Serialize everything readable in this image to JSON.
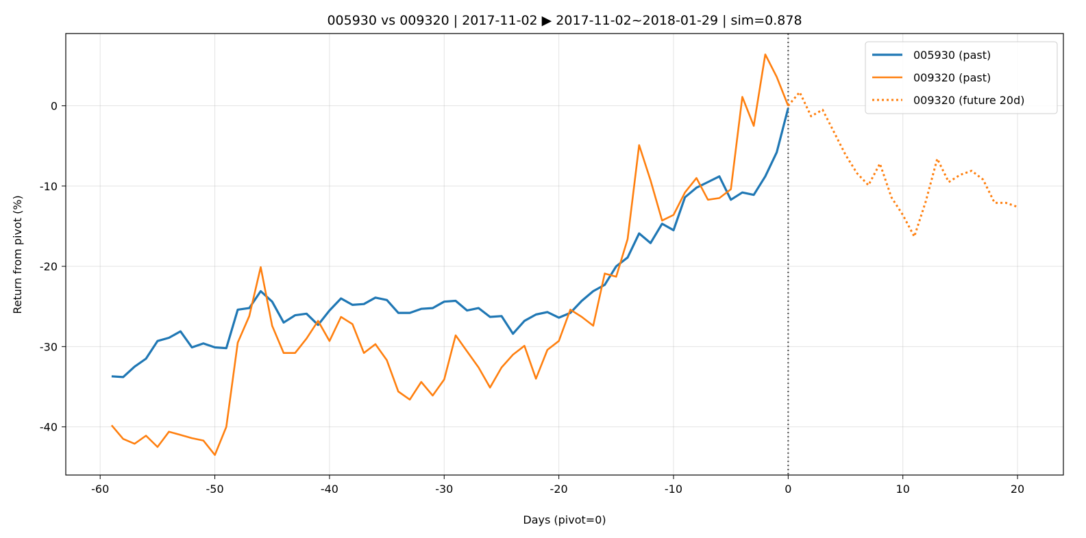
{
  "chart_data": {
    "type": "line",
    "title": "005930 vs 009320 | 2017-11-02 ▶ 2017-11-02~2018-01-29 | sim=0.878",
    "xlabel": "Days (pivot=0)",
    "ylabel": "Return from pivot (%)",
    "xlim": [
      -63,
      24
    ],
    "ylim": [
      -46,
      9
    ],
    "xticks": [
      -60,
      -50,
      -40,
      -30,
      -20,
      -10,
      0,
      10,
      20
    ],
    "yticks": [
      -40,
      -30,
      -20,
      -10,
      0
    ],
    "grid": true,
    "pivot_line_x": 0,
    "legend_position": "top-right",
    "series": [
      {
        "name": "005930 (past)",
        "color": "#1f77b4",
        "style": "solid",
        "x": [
          -59,
          -58,
          -57,
          -56,
          -55,
          -54,
          -53,
          -52,
          -51,
          -50,
          -49,
          -48,
          -47,
          -46,
          -45,
          -44,
          -43,
          -42,
          -41,
          -40,
          -39,
          -38,
          -37,
          -36,
          -35,
          -34,
          -33,
          -32,
          -31,
          -30,
          -29,
          -28,
          -27,
          -26,
          -25,
          -24,
          -23,
          -22,
          -21,
          -20,
          -19,
          -18,
          -17,
          -16,
          -15,
          -14,
          -13,
          -12,
          -11,
          -10,
          -9,
          -8,
          -7,
          -6,
          -5,
          -4,
          -3,
          -2,
          -1,
          0
        ],
        "y": [
          -33.7,
          -33.8,
          -32.5,
          -31.5,
          -29.3,
          -28.9,
          -28.1,
          -30.1,
          -29.6,
          -30.1,
          -30.2,
          -25.4,
          -25.2,
          -23.1,
          -24.4,
          -27.0,
          -26.1,
          -25.9,
          -27.3,
          -25.5,
          -24.0,
          -24.8,
          -24.7,
          -23.9,
          -24.2,
          -25.8,
          -25.8,
          -25.3,
          -25.2,
          -24.4,
          -24.3,
          -25.5,
          -25.2,
          -26.3,
          -26.2,
          -28.4,
          -26.8,
          -26.0,
          -25.7,
          -26.4,
          -25.8,
          -24.3,
          -23.1,
          -22.3,
          -20.0,
          -18.9,
          -15.9,
          -17.1,
          -14.7,
          -15.5,
          -11.4,
          -10.2,
          -9.5,
          -8.8,
          -11.7,
          -10.8,
          -11.1,
          -8.8,
          -5.8,
          -0.3
        ]
      },
      {
        "name": "009320 (past)",
        "color": "#ff7f0e",
        "style": "solid",
        "x": [
          -59,
          -58,
          -57,
          -56,
          -55,
          -54,
          -53,
          -52,
          -51,
          -50,
          -49,
          -48,
          -47,
          -46,
          -45,
          -44,
          -43,
          -42,
          -41,
          -40,
          -39,
          -38,
          -37,
          -36,
          -35,
          -34,
          -33,
          -32,
          -31,
          -30,
          -29,
          -28,
          -27,
          -26,
          -25,
          -24,
          -23,
          -22,
          -21,
          -20,
          -19,
          -18,
          -17,
          -16,
          -15,
          -14,
          -13,
          -12,
          -11,
          -10,
          -9,
          -8,
          -7,
          -6,
          -5,
          -4,
          -3,
          -2,
          -1,
          0
        ],
        "y": [
          -39.8,
          -41.5,
          -42.1,
          -41.1,
          -42.5,
          -40.6,
          -41.0,
          -41.4,
          -41.7,
          -43.5,
          -40.0,
          -29.5,
          -26.2,
          -20.1,
          -27.4,
          -30.8,
          -30.8,
          -29.0,
          -26.8,
          -29.3,
          -26.3,
          -27.2,
          -30.8,
          -29.7,
          -31.7,
          -35.6,
          -36.6,
          -34.4,
          -36.1,
          -34.1,
          -28.6,
          -30.6,
          -32.6,
          -35.1,
          -32.6,
          -31.0,
          -29.9,
          -34.0,
          -30.4,
          -29.3,
          -25.4,
          -26.3,
          -27.4,
          -20.9,
          -21.3,
          -16.6,
          -4.9,
          -9.3,
          -14.3,
          -13.6,
          -10.8,
          -9.0,
          -11.7,
          -11.5,
          -10.4,
          1.1,
          -2.5,
          6.4,
          3.6,
          0.0
        ]
      },
      {
        "name": "009320 (future 20d)",
        "color": "#ff7f0e",
        "style": "dotted",
        "x": [
          0,
          1,
          2,
          3,
          4,
          5,
          6,
          7,
          8,
          9,
          10,
          11,
          12,
          13,
          14,
          15,
          16,
          17,
          18,
          19,
          20
        ],
        "y": [
          0.0,
          1.7,
          -1.3,
          -0.5,
          -3.3,
          -6.1,
          -8.4,
          -9.9,
          -7.2,
          -11.4,
          -13.6,
          -16.3,
          -11.9,
          -6.6,
          -9.5,
          -8.6,
          -8.1,
          -9.2,
          -12.1,
          -12.1,
          -12.6
        ]
      }
    ]
  }
}
